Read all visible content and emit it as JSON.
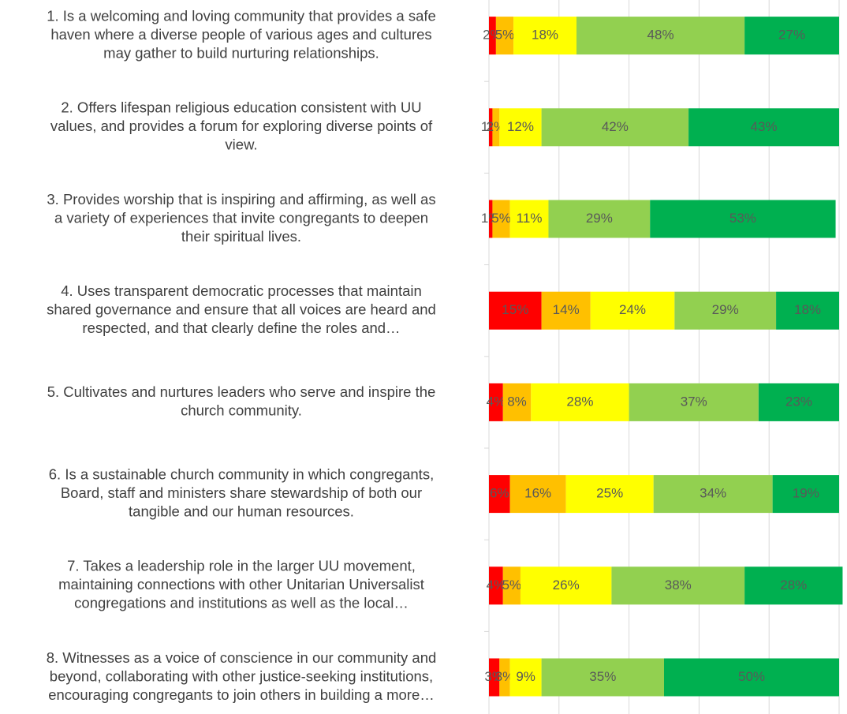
{
  "chart_data": {
    "type": "stacked_bar_horizontal",
    "categories": [
      [
        "1. Is a welcoming and loving community that provides a safe",
        "haven where a diverse people of various ages and cultures",
        "may gather to build nurturing relationships."
      ],
      [
        "2. Offers lifespan religious education consistent with UU",
        "values, and provides a forum for exploring diverse points of",
        "view."
      ],
      [
        "3. Provides worship that is inspiring and affirming, as well as",
        "a variety of experiences that invite congregants to deepen",
        "their spiritual lives."
      ],
      [
        "4. Uses transparent democratic processes that maintain",
        "shared governance and ensure that all voices are heard and",
        "respected, and that clearly define the roles and…"
      ],
      [
        "5. Cultivates and nurtures leaders who serve and inspire the",
        "church community."
      ],
      [
        "6. Is a sustainable church community in which congregants,",
        "Board, staff and ministers share stewardship of both our",
        "tangible and our human resources."
      ],
      [
        "7. Takes a leadership role in the larger UU movement,",
        "maintaining connections with other Unitarian Universalist",
        "congregations and institutions as well as the local…"
      ],
      [
        "8. Witnesses as a voice of conscience in our community and",
        "beyond, collaborating with other justice-seeking institutions,",
        "encouraging congregants to join others in building a more…"
      ]
    ],
    "series": [
      {
        "color": "#ff0000",
        "values": [
          2,
          1,
          1,
          15,
          4,
          6,
          4,
          3
        ],
        "value_labels": [
          "2%",
          "1%",
          "1%",
          "15%",
          "4%",
          "6%",
          "4%",
          "3%"
        ]
      },
      {
        "color": "#ffc000",
        "values": [
          5,
          2,
          5,
          14,
          8,
          16,
          5,
          3
        ],
        "value_labels": [
          "5%",
          "2%",
          "5%",
          "14%",
          "8%",
          "16%",
          "5%",
          "3%"
        ]
      },
      {
        "color": "#ffff00",
        "values": [
          18,
          12,
          11,
          24,
          28,
          25,
          26,
          9
        ],
        "value_labels": [
          "18%",
          "12%",
          "11%",
          "24%",
          "28%",
          "25%",
          "26%",
          "9%"
        ]
      },
      {
        "color": "#92d050",
        "values": [
          48,
          42,
          29,
          29,
          37,
          34,
          38,
          35
        ],
        "value_labels": [
          "48%",
          "42%",
          "29%",
          "29%",
          "37%",
          "34%",
          "38%",
          "35%"
        ]
      },
      {
        "color": "#00b050",
        "values": [
          27,
          43,
          53,
          18,
          23,
          19,
          28,
          50
        ],
        "value_labels": [
          "27%",
          "43%",
          "53%",
          "18%",
          "23%",
          "19%",
          "28%",
          "50%"
        ]
      }
    ],
    "xlim": [
      0,
      100
    ],
    "xticks": [
      0,
      20,
      40,
      60,
      80,
      100
    ],
    "grid": true
  }
}
